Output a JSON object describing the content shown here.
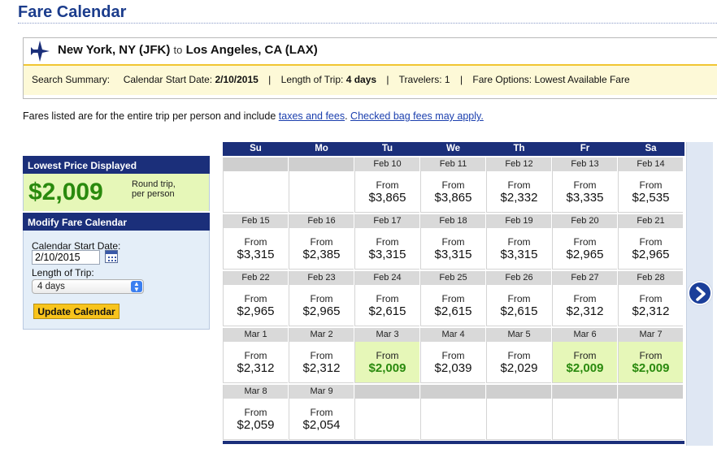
{
  "page_title": "Fare Calendar",
  "route": {
    "origin": "New York, NY (JFK)",
    "connector": "to",
    "destination": "Los Angeles, CA (LAX)"
  },
  "summary": {
    "label": "Search Summary:",
    "start_label": "Calendar Start Date:",
    "start_value": "2/10/2015",
    "length_label": "Length of Trip:",
    "length_value": "4 days",
    "travelers_label": "Travelers:",
    "travelers_value": "1",
    "options_label": "Fare Options:",
    "options_value": "Lowest Available Fare",
    "separator": "|"
  },
  "notice": {
    "text": "Fares listed are for the entire trip per person and include",
    "link1": "taxes and fees",
    "period": ".",
    "link2": "Checked bag fees may apply."
  },
  "left_panel": {
    "lowest_header": "Lowest Price Displayed",
    "lowest_price": "$2,009",
    "price_note_1": "Round trip,",
    "price_note_2": "per person",
    "modify_header": "Modify Fare Calendar",
    "start_label": "Calendar Start Date:",
    "start_value": "2/10/2015",
    "length_label": "Length of Trip:",
    "length_value": "4 days",
    "button": "Update Calendar"
  },
  "calendar": {
    "days": [
      "Su",
      "Mo",
      "Tu",
      "We",
      "Th",
      "Fr",
      "Sa"
    ],
    "from_label": "From",
    "weeks": [
      [
        null,
        null,
        {
          "date": "Feb 10",
          "price": "$3,865"
        },
        {
          "date": "Feb 11",
          "price": "$3,865"
        },
        {
          "date": "Feb 12",
          "price": "$2,332"
        },
        {
          "date": "Feb 13",
          "price": "$3,335"
        },
        {
          "date": "Feb 14",
          "price": "$2,535"
        }
      ],
      [
        {
          "date": "Feb 15",
          "price": "$3,315"
        },
        {
          "date": "Feb 16",
          "price": "$2,385"
        },
        {
          "date": "Feb 17",
          "price": "$3,315"
        },
        {
          "date": "Feb 18",
          "price": "$3,315"
        },
        {
          "date": "Feb 19",
          "price": "$3,315"
        },
        {
          "date": "Feb 20",
          "price": "$2,965"
        },
        {
          "date": "Feb 21",
          "price": "$2,965"
        }
      ],
      [
        {
          "date": "Feb 22",
          "price": "$2,965"
        },
        {
          "date": "Feb 23",
          "price": "$2,965"
        },
        {
          "date": "Feb 24",
          "price": "$2,615"
        },
        {
          "date": "Feb 25",
          "price": "$2,615"
        },
        {
          "date": "Feb 26",
          "price": "$2,615"
        },
        {
          "date": "Feb 27",
          "price": "$2,312"
        },
        {
          "date": "Feb 28",
          "price": "$2,312"
        }
      ],
      [
        {
          "date": "Mar 1",
          "price": "$2,312"
        },
        {
          "date": "Mar 2",
          "price": "$2,312"
        },
        {
          "date": "Mar 3",
          "price": "$2,009",
          "lowest": true
        },
        {
          "date": "Mar 4",
          "price": "$2,039"
        },
        {
          "date": "Mar 5",
          "price": "$2,029"
        },
        {
          "date": "Mar 6",
          "price": "$2,009",
          "lowest": true
        },
        {
          "date": "Mar 7",
          "price": "$2,009",
          "lowest": true
        }
      ],
      [
        {
          "date": "Mar 8",
          "price": "$2,059"
        },
        {
          "date": "Mar 9",
          "price": "$2,054"
        },
        null,
        null,
        null,
        null,
        null
      ]
    ]
  },
  "colors": {
    "navy": "#1b2f7a",
    "title_blue": "#1b3c8c",
    "lowest_green": "#2a8a0e",
    "lowest_bg": "#e6f7b8",
    "summary_bg": "#fdf9d7",
    "button_yellow": "#f8c41c"
  },
  "icons": {
    "plane": "airplane-icon",
    "calendar": "calendar-icon",
    "next": "chevron-right-icon"
  }
}
